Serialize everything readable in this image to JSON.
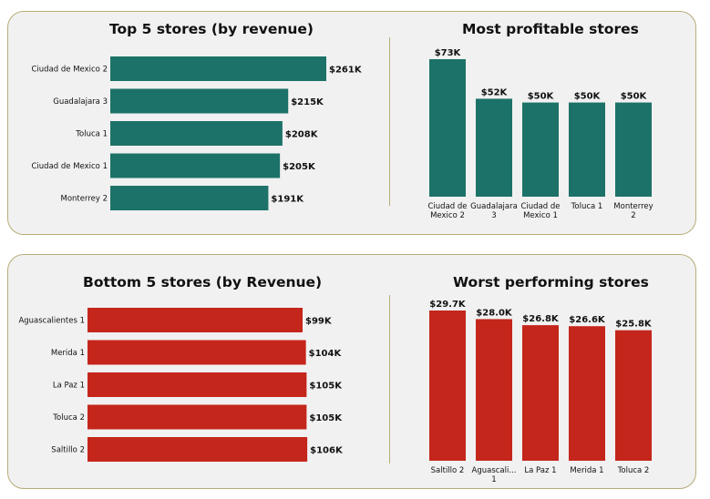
{
  "colors": {
    "good": "#1c7268",
    "bad": "#c4261b",
    "panel_bg": "#f1f1f1",
    "panel_border": "#b8ad7a"
  },
  "chart_data": [
    {
      "id": "top5",
      "type": "bar",
      "orientation": "horizontal",
      "title": "Top 5 stores (by revenue)",
      "categories": [
        "Ciudad de Mexico 2",
        "Guadalajara 3",
        "Toluca 1",
        "Ciudad de Mexico 1",
        "Monterrey 2"
      ],
      "values": [
        261,
        215,
        208,
        205,
        191
      ],
      "labels": [
        "$261K",
        "$215K",
        "$208K",
        "$205K",
        "$191K"
      ],
      "color": "#1c7268"
    },
    {
      "id": "profitable",
      "type": "bar",
      "orientation": "vertical",
      "title": "Most profitable stores",
      "categories": [
        [
          "Ciudad de",
          "Mexico 2"
        ],
        [
          "Guadalajara",
          "3"
        ],
        [
          "Ciudad de",
          "Mexico 1"
        ],
        [
          "Toluca 1"
        ],
        [
          "Monterrey",
          "2"
        ]
      ],
      "values": [
        73,
        52,
        50,
        50,
        50
      ],
      "labels": [
        "$73K",
        "$52K",
        "$50K",
        "$50K",
        "$50K"
      ],
      "color": "#1c7268"
    },
    {
      "id": "bottom5",
      "type": "bar",
      "orientation": "horizontal",
      "title": "Bottom 5 stores (by Revenue)",
      "categories": [
        "Aguascalientes 1",
        "Merida 1",
        "La Paz 1",
        "Toluca 2",
        "Saltillo 2"
      ],
      "values": [
        99,
        104,
        105,
        105,
        106
      ],
      "labels": [
        "$99K",
        "$104K",
        "$105K",
        "$105K",
        "$106K"
      ],
      "color": "#c4261b"
    },
    {
      "id": "worst",
      "type": "bar",
      "orientation": "vertical",
      "title": "Worst performing stores",
      "categories": [
        [
          "Saltillo 2"
        ],
        [
          "Aguascali...",
          "1"
        ],
        [
          "La Paz 1"
        ],
        [
          "Merida 1"
        ],
        [
          "Toluca 2"
        ]
      ],
      "values": [
        29.7,
        28.0,
        26.8,
        26.6,
        25.8
      ],
      "labels": [
        "$29.7K",
        "$28.0K",
        "$26.8K",
        "$26.6K",
        "$25.8K"
      ],
      "color": "#c4261b"
    }
  ]
}
